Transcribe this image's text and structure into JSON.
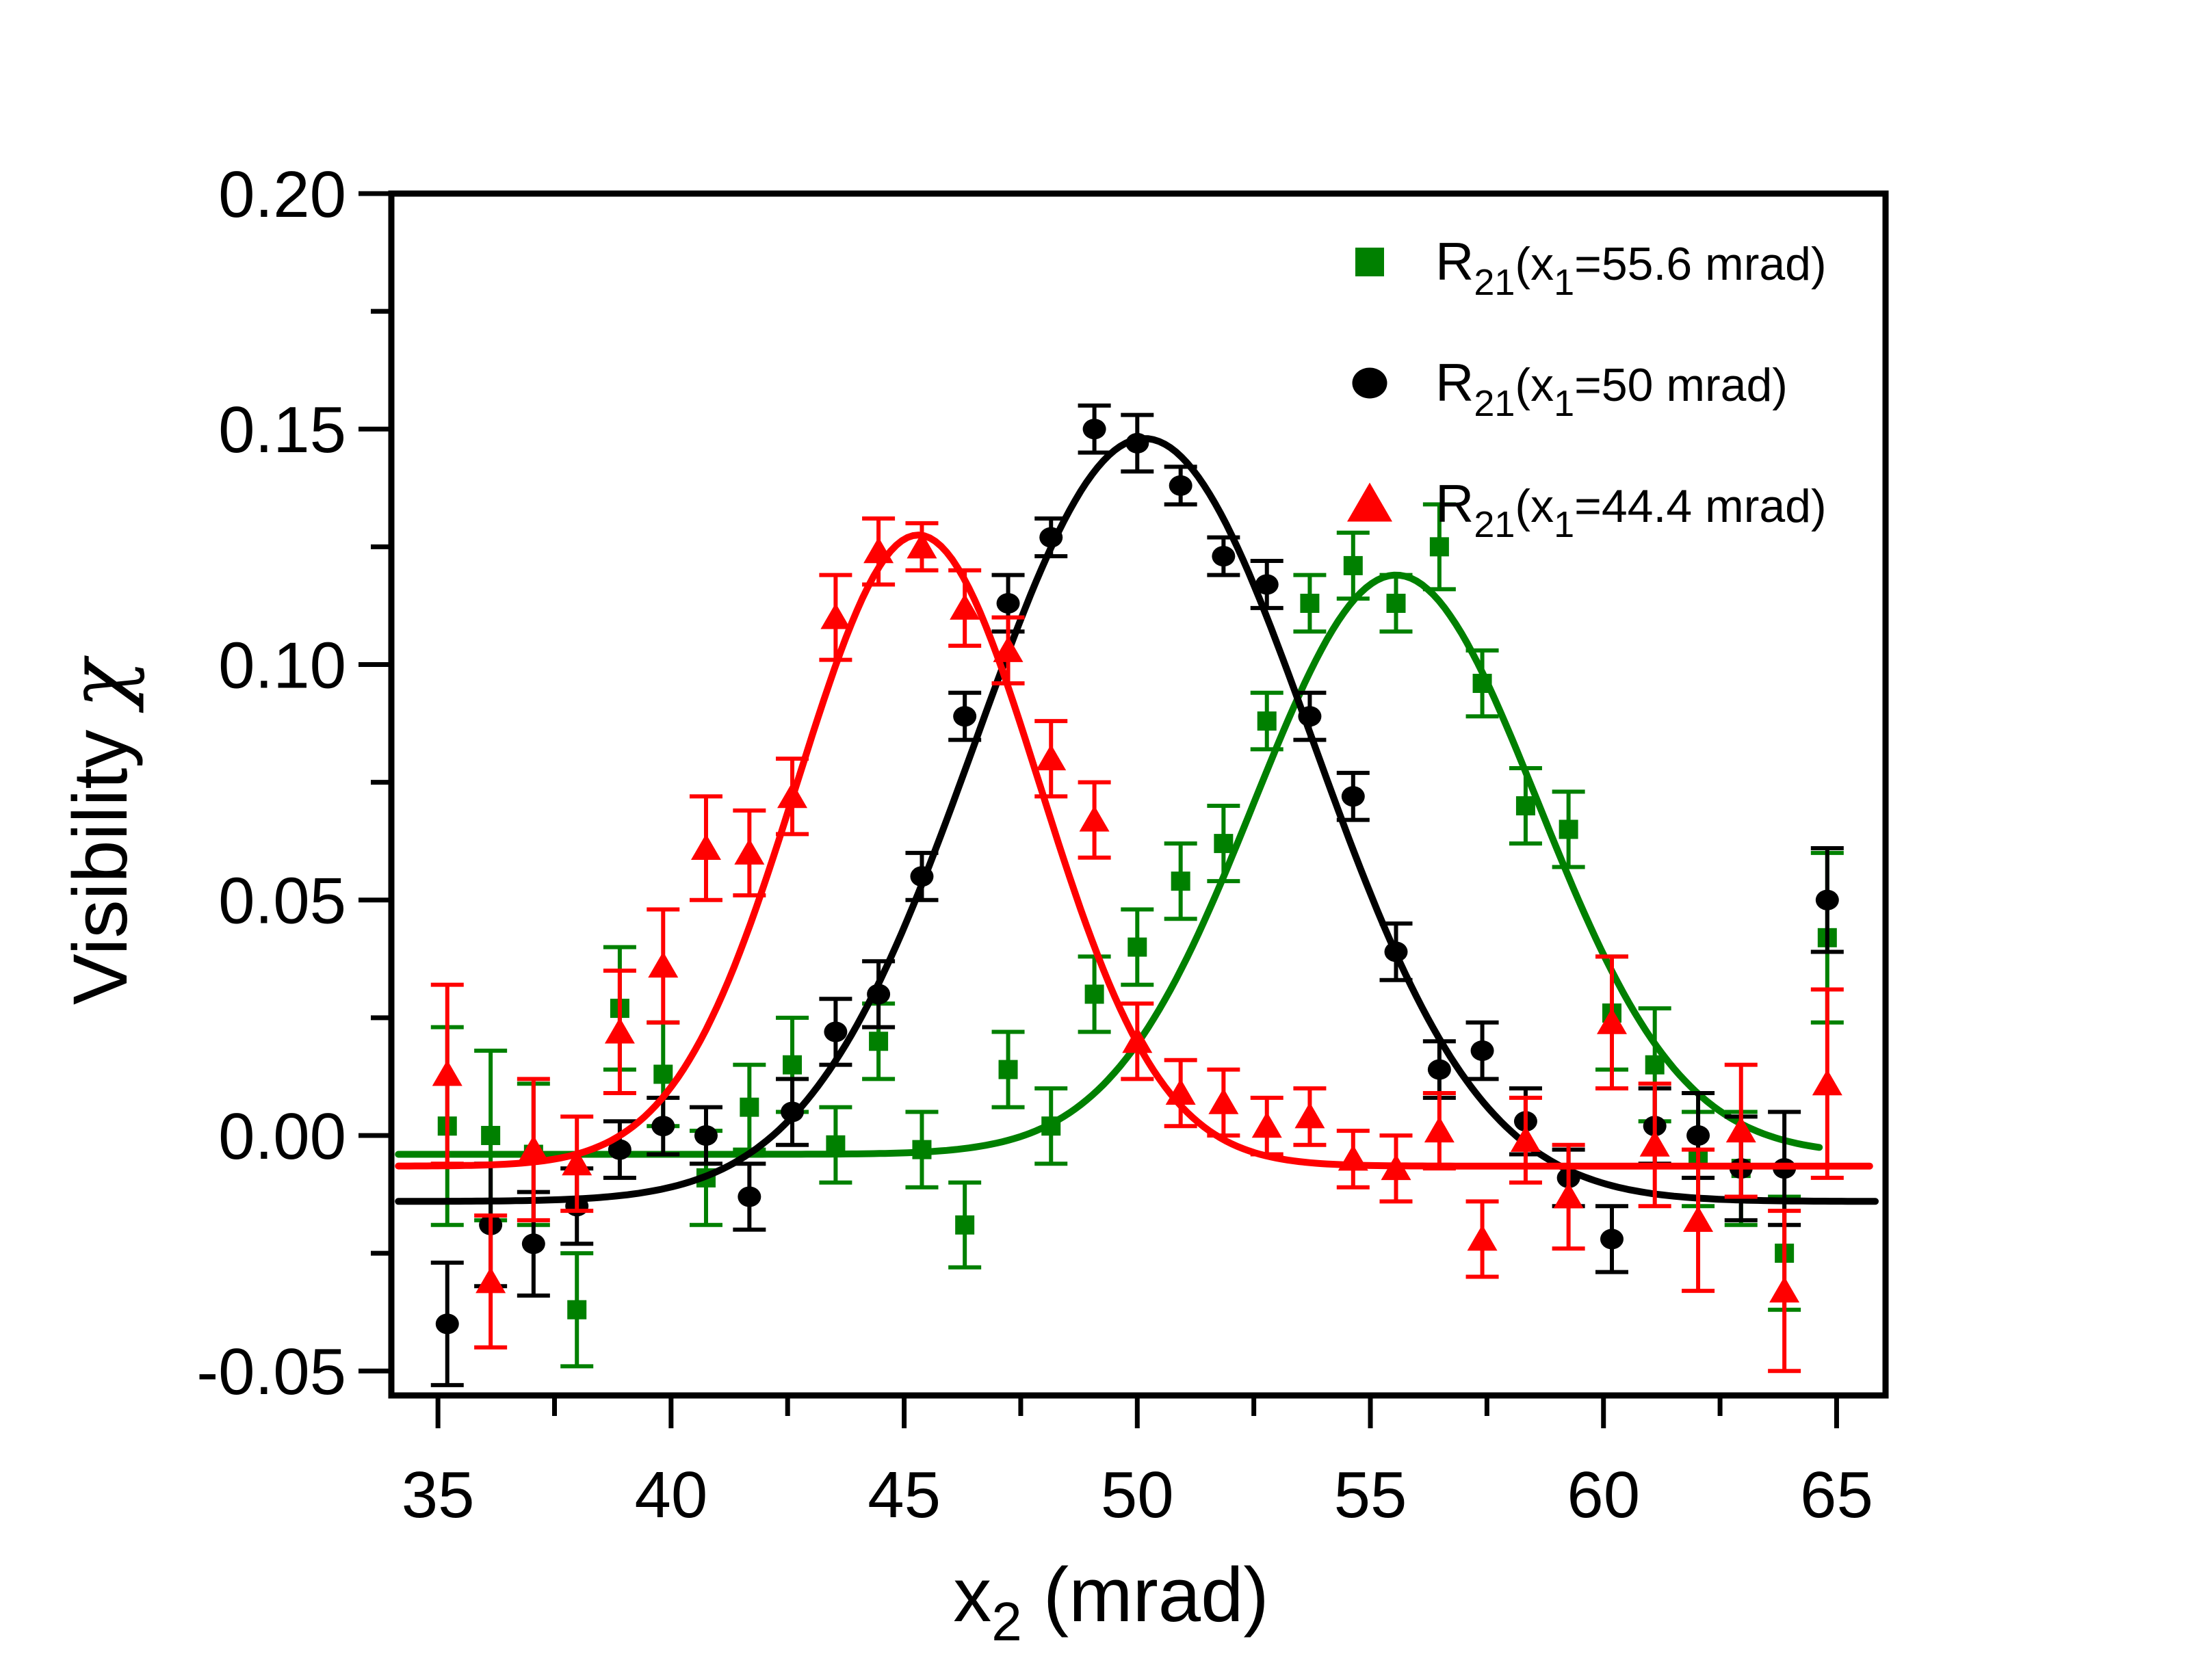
{
  "chart_data": {
    "type": "scatter",
    "title": "",
    "xlabel": {
      "main": "x",
      "sub": "2",
      "rest": " (mrad)"
    },
    "ylabel": {
      "main": "Visibility ",
      "symbol": "χ"
    },
    "xlim": [
      34.0,
      66.05
    ],
    "ylim": [
      -0.0552,
      0.2
    ],
    "x_ticks_major": [
      35,
      40,
      45,
      50,
      55,
      60,
      65
    ],
    "x_ticks_minor": [
      37.5,
      42.5,
      47.5,
      52.5,
      57.5,
      62.5
    ],
    "y_ticks_major": [
      0.2,
      0.15,
      0.1,
      0.05,
      0.0,
      -0.05
    ],
    "y_tick_labels": [
      "0.20",
      "0.15",
      "0.10",
      "0.05",
      "0.00",
      "-0.05"
    ],
    "y_ticks_minor": [
      0.175,
      0.125,
      0.075,
      0.025,
      -0.025
    ],
    "grid": false,
    "legend_position": "top-right-inside",
    "x": [
      35.2,
      36.13,
      37.05,
      37.98,
      38.9,
      39.83,
      40.75,
      41.68,
      42.6,
      43.53,
      44.45,
      45.38,
      46.3,
      47.23,
      48.15,
      49.08,
      50.0,
      50.93,
      51.85,
      52.78,
      53.7,
      54.63,
      55.55,
      56.48,
      57.4,
      58.33,
      59.25,
      60.18,
      61.1,
      62.03,
      62.95,
      63.88,
      64.8
    ],
    "series": [
      {
        "name": "green-squares",
        "legend": {
          "prefix": "R",
          "prefix_sub": "21",
          "mid": "(x",
          "mid_sub": "1",
          "suffix": "=55.6 mrad)"
        },
        "marker": "square",
        "color": "#008000",
        "y": [
          0.002,
          0.0,
          -0.004,
          -0.037,
          0.027,
          0.013,
          -0.009,
          0.006,
          0.015,
          -0.002,
          0.02,
          -0.003,
          -0.019,
          0.014,
          0.002,
          0.03,
          0.04,
          0.054,
          0.062,
          0.088,
          0.113,
          0.121,
          0.113,
          0.125,
          0.096,
          0.07,
          0.065,
          0.026,
          0.015,
          -0.005,
          -0.007,
          -0.025,
          0.042
        ],
        "yerr": [
          0.021,
          0.018,
          0.015,
          0.012,
          0.013,
          0.011,
          0.01,
          0.009,
          0.01,
          0.008,
          0.008,
          0.008,
          0.009,
          0.008,
          0.008,
          0.008,
          0.008,
          0.008,
          0.008,
          0.006,
          0.006,
          0.007,
          0.006,
          0.009,
          0.007,
          0.008,
          0.008,
          0.012,
          0.012,
          0.01,
          0.012,
          0.012,
          0.018
        ],
        "fit": {
          "shape": "gaussian",
          "baseline": -0.004,
          "amplitude": 0.123,
          "center": 55.55,
          "sigma": 3.05,
          "x_range": [
            34.15,
            64.7
          ]
        }
      },
      {
        "name": "black-circles",
        "legend": {
          "prefix": "R",
          "prefix_sub": "21",
          "mid": "(x",
          "mid_sub": "1",
          "suffix": "=50 mrad)"
        },
        "marker": "circle",
        "color": "#000000",
        "y": [
          -0.04,
          -0.019,
          -0.023,
          -0.015,
          -0.003,
          0.002,
          0.0,
          -0.013,
          0.005,
          0.022,
          0.03,
          0.055,
          0.089,
          0.113,
          0.127,
          0.15,
          0.147,
          0.138,
          0.123,
          0.117,
          0.089,
          0.072,
          0.039,
          0.014,
          0.018,
          0.003,
          -0.009,
          -0.022,
          0.002,
          0.0,
          -0.007,
          -0.007,
          0.05
        ],
        "yerr": [
          0.013,
          0.013,
          0.011,
          0.008,
          0.006,
          0.006,
          0.006,
          0.007,
          0.007,
          0.007,
          0.007,
          0.005,
          0.005,
          0.006,
          0.004,
          0.005,
          0.006,
          0.004,
          0.004,
          0.005,
          0.005,
          0.005,
          0.006,
          0.006,
          0.006,
          0.007,
          0.006,
          0.007,
          0.008,
          0.009,
          0.011,
          0.012,
          0.011
        ],
        "fit": {
          "shape": "gaussian",
          "baseline": -0.014,
          "amplitude": 0.162,
          "center": 50.15,
          "sigma": 3.6,
          "x_range": [
            34.15,
            65.85
          ]
        }
      },
      {
        "name": "red-triangles",
        "legend": {
          "prefix": "R",
          "prefix_sub": "21",
          "mid": "(x",
          "mid_sub": "1",
          "suffix": "=44.4 mrad)"
        },
        "marker": "triangle",
        "color": "#ff0000",
        "y": [
          0.013,
          -0.031,
          -0.003,
          -0.006,
          0.022,
          0.036,
          0.061,
          0.06,
          0.072,
          0.11,
          0.124,
          0.125,
          0.112,
          0.103,
          0.08,
          0.067,
          0.02,
          0.009,
          0.007,
          0.002,
          0.004,
          -0.005,
          -0.007,
          0.001,
          -0.022,
          -0.001,
          -0.013,
          0.024,
          -0.002,
          -0.018,
          0.001,
          -0.033,
          0.011
        ],
        "yerr": [
          0.019,
          0.014,
          0.015,
          0.01,
          0.013,
          0.012,
          0.011,
          0.009,
          0.008,
          0.009,
          0.007,
          0.005,
          0.008,
          0.007,
          0.008,
          0.008,
          0.008,
          0.007,
          0.007,
          0.006,
          0.006,
          0.006,
          0.007,
          0.008,
          0.008,
          0.009,
          0.011,
          0.014,
          0.013,
          0.015,
          0.014,
          0.017,
          0.02
        ],
        "fit": {
          "shape": "gaussian",
          "baseline": -0.0065,
          "amplitude": 0.134,
          "center": 45.3,
          "sigma": 2.6,
          "x_range": [
            34.15,
            65.75
          ]
        }
      }
    ]
  }
}
